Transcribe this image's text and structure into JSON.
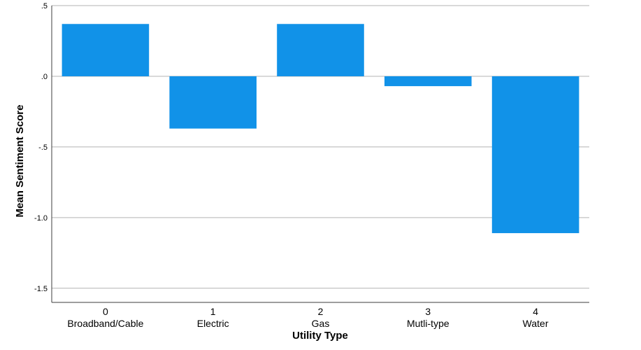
{
  "chart_data": {
    "type": "bar",
    "categories": [
      {
        "code": "0",
        "name": "Broadband/Cable"
      },
      {
        "code": "1",
        "name": "Electric"
      },
      {
        "code": "2",
        "name": "Gas"
      },
      {
        "code": "3",
        "name": "Mutli-type"
      },
      {
        "code": "4",
        "name": "Water"
      }
    ],
    "values": [
      0.37,
      -0.37,
      0.37,
      -0.07,
      -1.11
    ],
    "xlabel": "Utility Type",
    "ylabel": "Mean Sentiment Score",
    "ylim": [
      -1.6,
      0.5
    ],
    "yticks": [
      0.5,
      0.0,
      -0.5,
      -1.0,
      -1.5
    ],
    "ytick_labels": [
      ".5",
      ".0",
      "-.5",
      "-1.0",
      "-1.5"
    ],
    "grid": true,
    "colors": {
      "bar": "#1192e8",
      "grid": "#b3b3b3",
      "axis": "#3c3c3c"
    }
  }
}
